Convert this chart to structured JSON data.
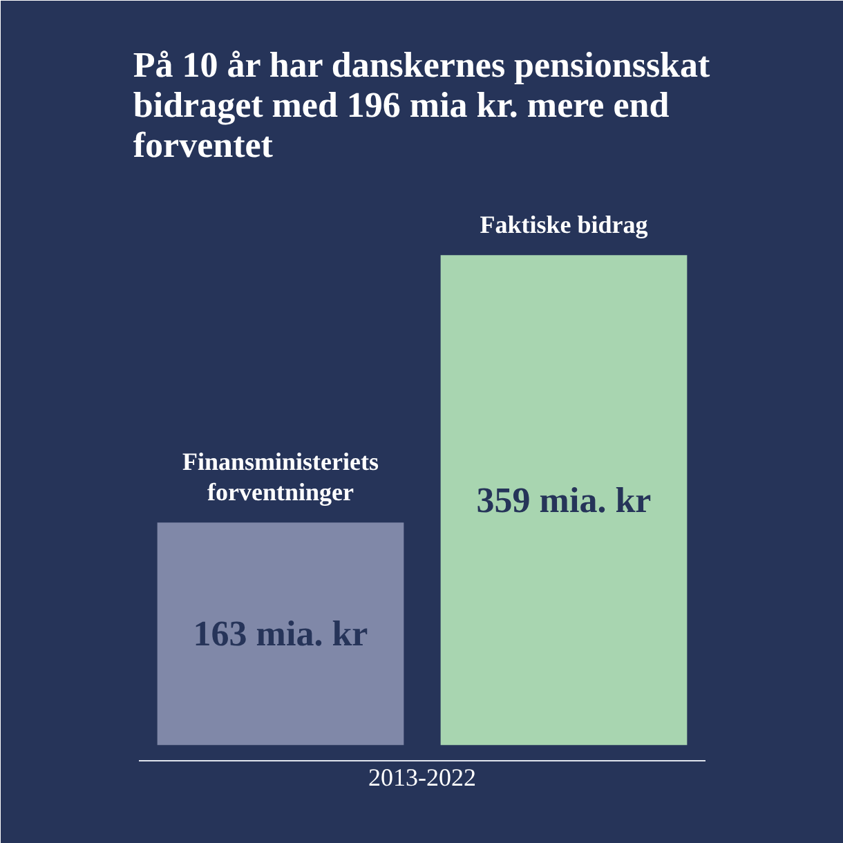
{
  "chart_data": {
    "type": "bar",
    "title": "På 10 år har danskernes pensionsskat bidraget med 196 mia kr. mere end forventet",
    "categories": [
      "Finansministeriets forventninger",
      "Faktiske bidrag"
    ],
    "values": [
      163,
      359
    ],
    "colors": [
      "#8088a8",
      "#a8d5b0"
    ],
    "value_labels": [
      "163 mia. kr",
      "359 mia. kr"
    ],
    "xlabel": "2013-2022"
  }
}
